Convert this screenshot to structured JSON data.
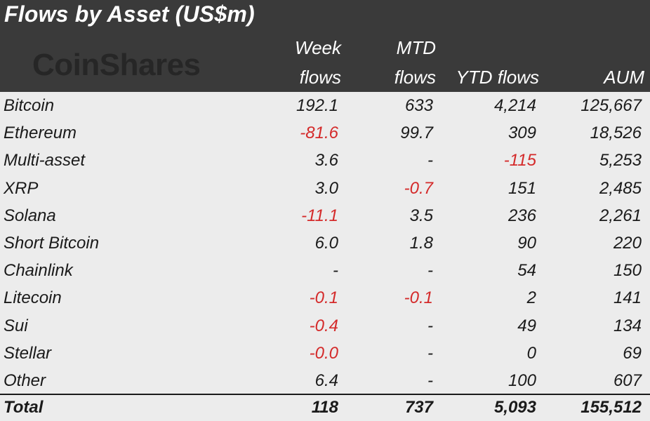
{
  "title": "Flows by Asset (US$m)",
  "logo": "CoinShares",
  "headers": {
    "week_top": "Week",
    "week_bottom": "flows",
    "mtd_top": "MTD",
    "mtd_bottom": "flows",
    "ytd": "YTD flows",
    "aum": "AUM"
  },
  "colors": {
    "negative": "#d42a2a",
    "header_bg": "#3a3a3a",
    "body_bg": "#ececec"
  },
  "chart_data": {
    "type": "table",
    "columns": [
      "Week flows",
      "MTD flows",
      "YTD flows",
      "AUM"
    ],
    "rows": [
      {
        "name": "Bitcoin",
        "week": "192.1",
        "mtd": "633",
        "ytd": "4,214",
        "aum": "125,667"
      },
      {
        "name": "Ethereum",
        "week": "-81.6",
        "mtd": "99.7",
        "ytd": "309",
        "aum": "18,526"
      },
      {
        "name": "Multi-asset",
        "week": "3.6",
        "mtd": "-",
        "ytd": "-115",
        "aum": "5,253"
      },
      {
        "name": "XRP",
        "week": "3.0",
        "mtd": "-0.7",
        "ytd": "151",
        "aum": "2,485"
      },
      {
        "name": "Solana",
        "week": "-11.1",
        "mtd": "3.5",
        "ytd": "236",
        "aum": "2,261"
      },
      {
        "name": "Short Bitcoin",
        "week": "6.0",
        "mtd": "1.8",
        "ytd": "90",
        "aum": "220"
      },
      {
        "name": "Chainlink",
        "week": "-",
        "mtd": "-",
        "ytd": "54",
        "aum": "150"
      },
      {
        "name": "Litecoin",
        "week": "-0.1",
        "mtd": "-0.1",
        "ytd": "2",
        "aum": "141"
      },
      {
        "name": "Sui",
        "week": "-0.4",
        "mtd": "-",
        "ytd": "49",
        "aum": "134"
      },
      {
        "name": "Stellar",
        "week": "-0.0",
        "mtd": "-",
        "ytd": "0",
        "aum": "69"
      },
      {
        "name": "Other",
        "week": "6.4",
        "mtd": "-",
        "ytd": "100",
        "aum": "607"
      }
    ],
    "total": {
      "name": "Total",
      "week": "118",
      "mtd": "737",
      "ytd": "5,093",
      "aum": "155,512"
    }
  }
}
